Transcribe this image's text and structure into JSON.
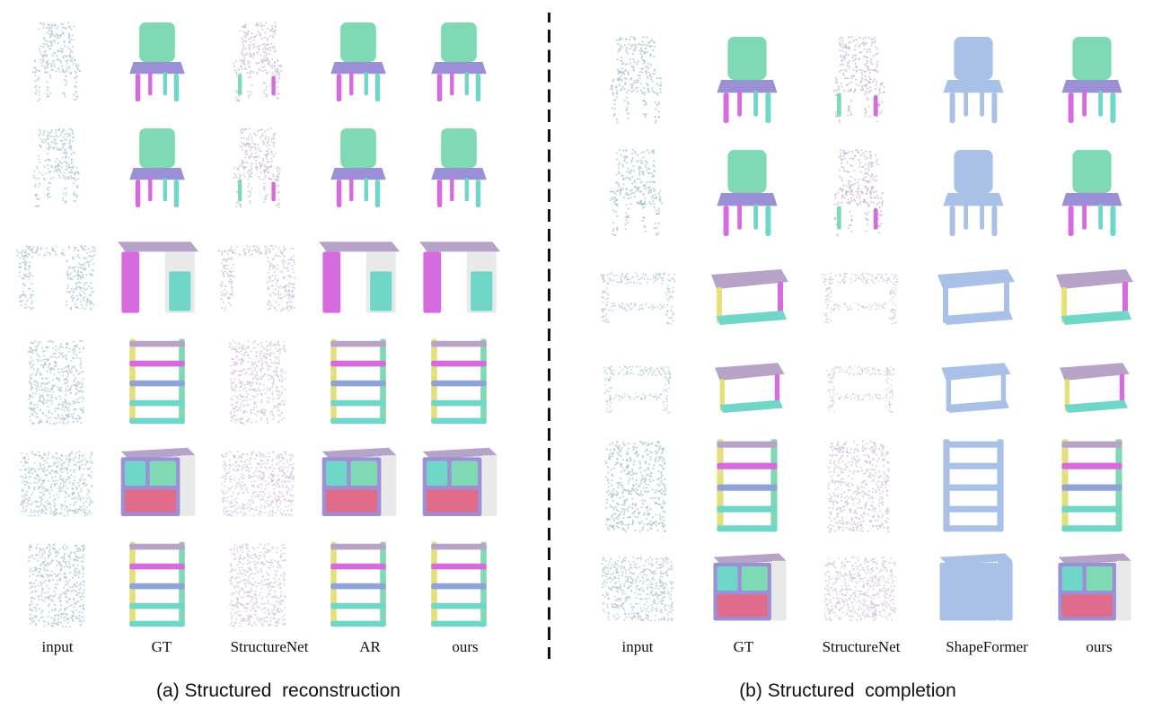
{
  "panel_a": {
    "caption": "(a) Structured  reconstruction",
    "columns": [
      "input",
      "GT",
      "StructureNet",
      "AR",
      "ours"
    ]
  },
  "panel_b": {
    "caption": "(b) Structured  completion",
    "columns": [
      "input",
      "GT",
      "StructureNet",
      "ShapeFormer",
      "ours"
    ]
  },
  "colors": {
    "pointcloud": "#a9c3cc",
    "purple": "#9b8fd6",
    "mint": "#7fd9b4",
    "magenta": "#d86ae0",
    "teal": "#6fd6c8",
    "mauve": "#b7a2c8",
    "blue_gray": "#8fa3d6",
    "shapeformer_blue": "#a9c1e6",
    "gray": "#e9e9e9"
  }
}
